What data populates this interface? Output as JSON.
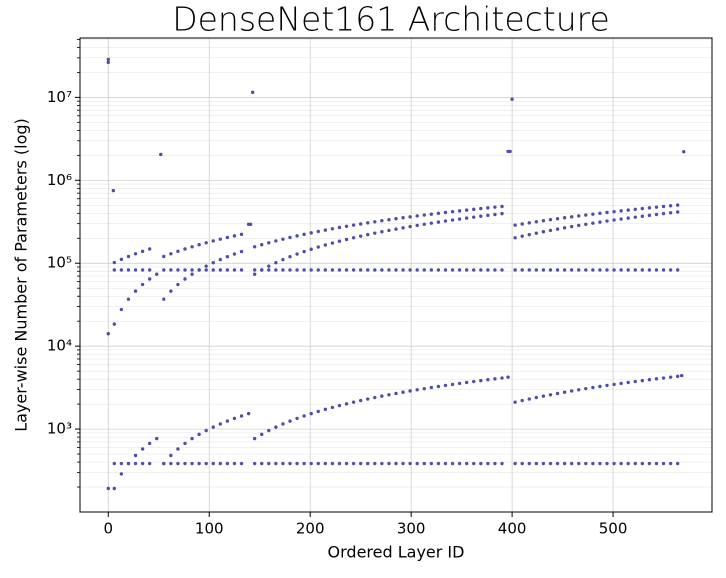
{
  "chart_data": {
    "type": "scatter",
    "title": "DenseNet161 Architecture",
    "xlabel": "Ordered Layer ID",
    "ylabel": "Layer-wise Number of Parameters (log)",
    "yscale": "log",
    "grid": true,
    "color": "#4f4fa8",
    "xlim": [
      -28,
      598
    ],
    "xticks": [
      0,
      100,
      200,
      300,
      400,
      500
    ],
    "ylim": [
      100,
      52000000
    ],
    "yticks": [
      {
        "value": 1000,
        "label": "10³"
      },
      {
        "value": 10000,
        "label": "10⁴"
      },
      {
        "value": 100000,
        "label": "10⁵"
      },
      {
        "value": 1000000,
        "label": "10⁶"
      },
      {
        "value": 10000000,
        "label": "10⁷"
      }
    ],
    "x": [
      6,
      13,
      20,
      27,
      34,
      41,
      55,
      62,
      69,
      76,
      83,
      90,
      97,
      104,
      111,
      118,
      125,
      132,
      145,
      152,
      159,
      166,
      173,
      180,
      187,
      194,
      201,
      208,
      215,
      222,
      229,
      236,
      243,
      250,
      257,
      264,
      271,
      278,
      285,
      292,
      299,
      306,
      313,
      320,
      327,
      334,
      341,
      348,
      355,
      362,
      369,
      376,
      383,
      390,
      403,
      410,
      417,
      424,
      431,
      438,
      445,
      452,
      459,
      466,
      473,
      480,
      487,
      494,
      501,
      508,
      515,
      522,
      529,
      536,
      543,
      550,
      557,
      564
    ],
    "series": [
      {
        "values": [
          101952,
          111264,
          120576,
          129888,
          139200,
          148512,
          120576,
          129888,
          139200,
          148512,
          157824,
          167136,
          176448,
          185760,
          195072,
          204384,
          213696,
          223008,
          157824,
          167136,
          176448,
          185760,
          195072,
          204384,
          213696,
          223008,
          232320,
          241632,
          250944,
          260256,
          269568,
          278880,
          288192,
          297504,
          306816,
          316128,
          325440,
          334752,
          344064,
          353376,
          362688,
          372000,
          381312,
          390624,
          399936,
          409248,
          418560,
          427872,
          437184,
          446496,
          455808,
          465120,
          474432,
          483744,
          288192,
          297504,
          306816,
          316128,
          325440,
          334752,
          344064,
          353376,
          362688,
          372000,
          381312,
          390624,
          399936,
          409248,
          418560,
          427872,
          437184,
          446496,
          455808,
          465120,
          474432,
          483744,
          493056,
          502368
        ]
      },
      {
        "values": [
          18432,
          27648,
          36864,
          46080,
          55296,
          64512,
          36864,
          46080,
          55296,
          64512,
          73728,
          82944,
          92160,
          101376,
          110592,
          119808,
          129024,
          138240,
          73728,
          82944,
          92160,
          101376,
          110592,
          119808,
          129024,
          138240,
          147456,
          156672,
          165888,
          175104,
          184320,
          193536,
          202752,
          211968,
          221184,
          230400,
          239616,
          248832,
          258048,
          267264,
          276480,
          285696,
          294912,
          304128,
          313344,
          322560,
          331776,
          340992,
          350208,
          359424,
          368640,
          377856,
          387072,
          396288,
          202752,
          211968,
          221184,
          230400,
          239616,
          248832,
          258048,
          267264,
          276480,
          285696,
          294912,
          304128,
          313344,
          322560,
          331776,
          340992,
          350208,
          359424,
          368640,
          377856,
          387072,
          396288,
          405504,
          414720
        ]
      },
      {
        "values": [
          82944,
          82944,
          82944,
          82944,
          82944,
          82944,
          82944,
          82944,
          82944,
          82944,
          82944,
          82944,
          82944,
          82944,
          82944,
          82944,
          82944,
          82944,
          82944,
          82944,
          82944,
          82944,
          82944,
          82944,
          82944,
          82944,
          82944,
          82944,
          82944,
          82944,
          82944,
          82944,
          82944,
          82944,
          82944,
          82944,
          82944,
          82944,
          82944,
          82944,
          82944,
          82944,
          82944,
          82944,
          82944,
          82944,
          82944,
          82944,
          82944,
          82944,
          82944,
          82944,
          82944,
          82944,
          82944,
          82944,
          82944,
          82944,
          82944,
          82944,
          82944,
          82944,
          82944,
          82944,
          82944,
          82944,
          82944,
          82944,
          82944,
          82944,
          82944,
          82944,
          82944,
          82944,
          82944,
          82944,
          82944,
          82944
        ]
      },
      {
        "values": [
          192,
          288,
          384,
          480,
          576,
          672,
          384,
          480,
          576,
          672,
          768,
          864,
          960,
          1056,
          1152,
          1248,
          1344,
          1440,
          768,
          864,
          960,
          1056,
          1152,
          1248,
          1344,
          1440,
          1536,
          1632,
          1728,
          1824,
          1920,
          2016,
          2112,
          2208,
          2304,
          2400,
          2496,
          2592,
          2688,
          2784,
          2880,
          2976,
          3072,
          3168,
          3264,
          3360,
          3456,
          3552,
          3648,
          3744,
          3840,
          3936,
          4032,
          4128,
          2112,
          2208,
          2304,
          2400,
          2496,
          2592,
          2688,
          2784,
          2880,
          2976,
          3072,
          3168,
          3264,
          3360,
          3456,
          3552,
          3648,
          3744,
          3840,
          3936,
          4032,
          4128,
          4224,
          4320
        ]
      },
      {
        "values": [
          384,
          384,
          384,
          384,
          384,
          384,
          384,
          384,
          384,
          384,
          384,
          384,
          384,
          384,
          384,
          384,
          384,
          384,
          384,
          384,
          384,
          384,
          384,
          384,
          384,
          384,
          384,
          384,
          384,
          384,
          384,
          384,
          384,
          384,
          384,
          384,
          384,
          384,
          384,
          384,
          384,
          384,
          384,
          384,
          384,
          384,
          384,
          384,
          384,
          384,
          384,
          384,
          384,
          384,
          384,
          384,
          384,
          384,
          384,
          384,
          384,
          384,
          384,
          384,
          384,
          384,
          384,
          384,
          384,
          384,
          384,
          384,
          384,
          384,
          384,
          384,
          384,
          384
        ]
      },
      {
        "x": [
          0,
          0,
          0,
          0,
          5,
          48,
          48,
          52,
          139,
          141,
          139,
          143,
          396,
          398,
          396,
          400,
          568,
          570
        ],
        "values": [
          28681000,
          26472000,
          14112,
          192,
          751392,
          73728,
          768,
          2050000,
          294912,
          294912,
          1536,
          11500000,
          2230272,
          2230272,
          4224,
          9500000,
          4416,
          2209000
        ]
      }
    ]
  }
}
